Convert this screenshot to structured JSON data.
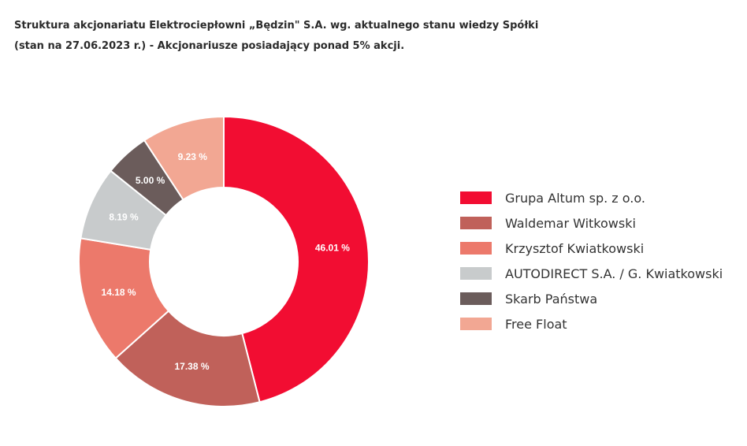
{
  "header": {
    "title_line1": "Struktura akcjonariatu Elektrociepłowni „Będzin\" S.A. wg. aktualnego stanu wiedzy Spółki",
    "title_line2": "(stan na 27.06.2023 r.)  -  Akcjonariusze posiadający ponad 5% akcji."
  },
  "chart_data": {
    "type": "pie",
    "donut": true,
    "legend_position": "right",
    "slices": [
      {
        "label": "Grupa Altum sp. z o.o.",
        "value": 46.01,
        "display": "46.01 %",
        "color": "#f20d32"
      },
      {
        "label": "Waldemar Witkowski",
        "value": 17.38,
        "display": "17.38 %",
        "color": "#c0615a"
      },
      {
        "label": "Krzysztof Kwiatkowski",
        "value": 14.18,
        "display": "14.18 %",
        "color": "#ec796b"
      },
      {
        "label": "AUTODIRECT S.A. / G. Kwiatkowski",
        "value": 8.19,
        "display": "8.19 %",
        "color": "#c8cbcc"
      },
      {
        "label": "Skarb Państwa",
        "value": 5.0,
        "display": "5.00 %",
        "color": "#6b5c5b"
      },
      {
        "label": "Free Float",
        "value": 9.23,
        "display": "9.23 %",
        "color": "#f2a793"
      }
    ]
  }
}
